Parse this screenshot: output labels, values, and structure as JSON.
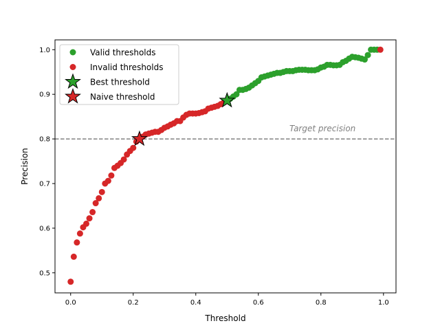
{
  "chart_data": {
    "type": "scatter",
    "title": "",
    "xlabel": "Threshold",
    "ylabel": "Precision",
    "xlim": [
      -0.05,
      1.04
    ],
    "ylim": [
      0.455,
      1.022
    ],
    "xticks": [
      "0.0",
      "0.2",
      "0.4",
      "0.6",
      "0.8",
      "1.0"
    ],
    "yticks": [
      "0.5",
      "0.6",
      "0.7",
      "0.8",
      "0.9",
      "1.0"
    ],
    "grid": false,
    "legend_position": "top-left",
    "series": [
      {
        "name": "Valid thresholds",
        "color": "#2ca02c",
        "marker": "circle",
        "x": [
          0.5,
          0.51,
          0.52,
          0.53,
          0.54,
          0.55,
          0.56,
          0.57,
          0.58,
          0.59,
          0.6,
          0.61,
          0.62,
          0.63,
          0.64,
          0.65,
          0.66,
          0.67,
          0.68,
          0.69,
          0.7,
          0.71,
          0.72,
          0.73,
          0.74,
          0.75,
          0.76,
          0.77,
          0.78,
          0.79,
          0.8,
          0.81,
          0.82,
          0.83,
          0.84,
          0.85,
          0.86,
          0.87,
          0.88,
          0.89,
          0.9,
          0.91,
          0.92,
          0.93,
          0.94,
          0.95,
          0.96,
          0.97,
          0.98
        ],
        "y": [
          0.886,
          0.89,
          0.895,
          0.9,
          0.91,
          0.91,
          0.912,
          0.915,
          0.92,
          0.925,
          0.93,
          0.938,
          0.94,
          0.942,
          0.944,
          0.946,
          0.948,
          0.948,
          0.95,
          0.952,
          0.952,
          0.952,
          0.954,
          0.955,
          0.955,
          0.955,
          0.954,
          0.954,
          0.954,
          0.956,
          0.96,
          0.962,
          0.966,
          0.966,
          0.965,
          0.965,
          0.966,
          0.972,
          0.975,
          0.98,
          0.984,
          0.983,
          0.982,
          0.98,
          0.978,
          0.988,
          1.0,
          1.0,
          1.0
        ]
      },
      {
        "name": "Invalid thresholds",
        "color": "#d62728",
        "marker": "circle",
        "x": [
          0.0,
          0.01,
          0.02,
          0.03,
          0.04,
          0.05,
          0.06,
          0.07,
          0.08,
          0.09,
          0.1,
          0.11,
          0.12,
          0.13,
          0.14,
          0.15,
          0.16,
          0.17,
          0.18,
          0.19,
          0.2,
          0.21,
          0.22,
          0.23,
          0.24,
          0.25,
          0.26,
          0.27,
          0.28,
          0.29,
          0.3,
          0.31,
          0.32,
          0.33,
          0.34,
          0.35,
          0.36,
          0.37,
          0.38,
          0.39,
          0.4,
          0.41,
          0.42,
          0.43,
          0.44,
          0.45,
          0.46,
          0.47,
          0.48,
          0.49,
          0.99
        ],
        "y": [
          0.48,
          0.536,
          0.568,
          0.588,
          0.602,
          0.61,
          0.622,
          0.636,
          0.656,
          0.667,
          0.681,
          0.7,
          0.706,
          0.718,
          0.735,
          0.74,
          0.746,
          0.754,
          0.765,
          0.773,
          0.78,
          0.794,
          0.8,
          0.805,
          0.81,
          0.812,
          0.814,
          0.816,
          0.816,
          0.82,
          0.825,
          0.828,
          0.832,
          0.835,
          0.84,
          0.84,
          0.848,
          0.854,
          0.857,
          0.857,
          0.857,
          0.858,
          0.86,
          0.862,
          0.868,
          0.87,
          0.872,
          0.874,
          0.878,
          0.882,
          1.0
        ]
      },
      {
        "name": "Best threshold",
        "color": "#2ca02c",
        "marker": "star",
        "x": [
          0.5
        ],
        "y": [
          0.886
        ]
      },
      {
        "name": "Naive threshold",
        "color": "#d62728",
        "marker": "star",
        "x": [
          0.22
        ],
        "y": [
          0.8
        ]
      }
    ],
    "hline": {
      "y": 0.8,
      "style": "dashed",
      "color": "#808080",
      "label": "Target precision"
    }
  }
}
